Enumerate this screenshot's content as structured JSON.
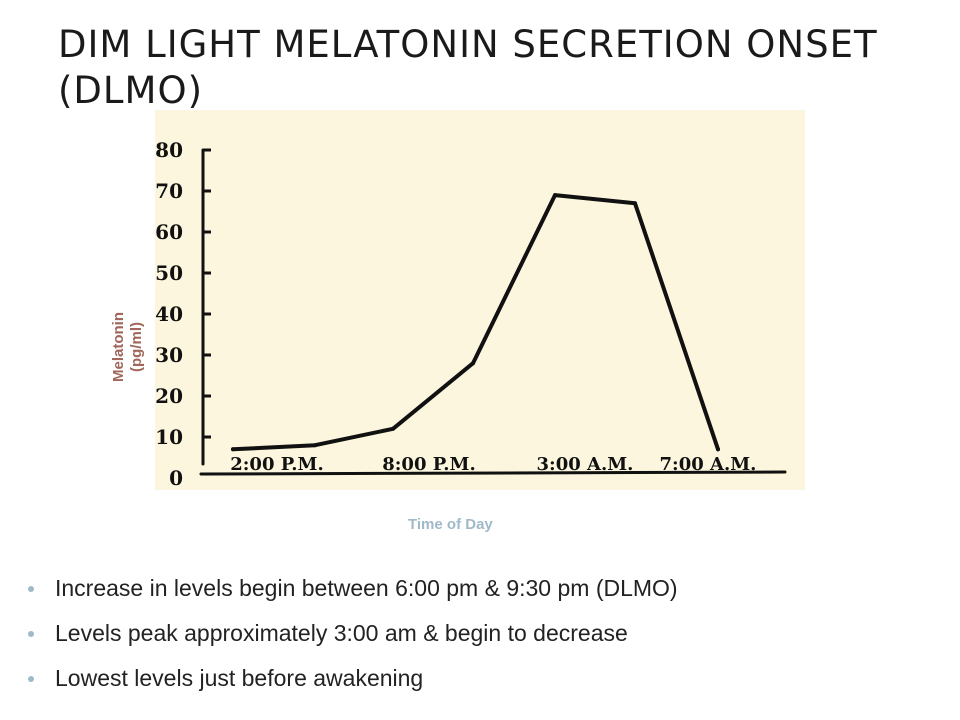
{
  "slide": {
    "title": "DIM LIGHT MELATONIN SECRETION ONSET (DLMO)",
    "bullets": [
      "Increase in levels begin between 6:00 pm & 9:30 pm (DLMO)",
      "Levels peak approximately 3:00 am  & begin to decrease",
      "Lowest levels just before awakening"
    ]
  },
  "chart_data": {
    "type": "line",
    "xlabel": "Time of Day",
    "ylabel": "Melatonin (pg/ml)",
    "x_tick_labels": [
      "2:00 P.M.",
      "8:00 P.M.",
      "3:00 A.M.",
      "7:00 A.M."
    ],
    "y_ticks": [
      0,
      10,
      20,
      30,
      40,
      50,
      60,
      70,
      80
    ],
    "ylim": [
      0,
      80
    ],
    "series": [
      {
        "x": [
          "2:00 P.M.",
          "",
          "8:00 P.M.",
          "",
          "3:00 A.M.",
          "",
          "7:00 A.M."
        ],
        "values": [
          7,
          8,
          12,
          28,
          69,
          67,
          7
        ]
      }
    ],
    "grid": false,
    "colors": {
      "line": "#111111",
      "panel": "#fbf6dd",
      "ylabel": "#a0665a",
      "xlabel": "#9fb9c9"
    }
  }
}
